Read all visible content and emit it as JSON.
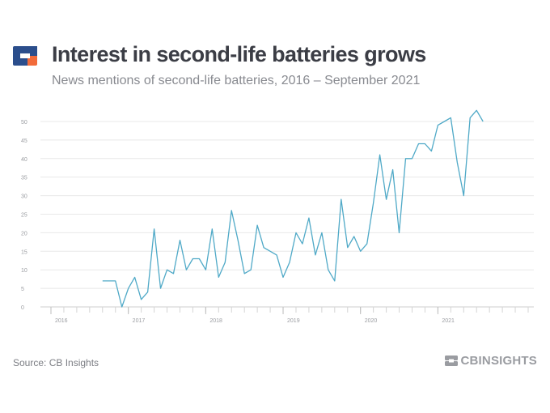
{
  "header": {
    "title": "Interest in second-life batteries grows",
    "subtitle": "News mentions of second-life batteries, 2016 – September 2021"
  },
  "footer": {
    "source": "Source: CB Insights",
    "brand": "CBINSIGHTS"
  },
  "colors": {
    "line": "#4fa9c7",
    "logo_blue": "#2b4e8c",
    "logo_orange": "#f26b3a",
    "grid": "#e8e8e8",
    "axis_text": "#9a9ca1"
  },
  "chart_data": {
    "type": "line",
    "title": "Interest in second-life batteries grows",
    "subtitle": "News mentions of second-life batteries, 2016 – September 2021",
    "xlabel": "",
    "ylabel": "",
    "ylim": [
      0,
      50
    ],
    "yticks": [
      0,
      5,
      10,
      15,
      20,
      25,
      30,
      35,
      40,
      45,
      50
    ],
    "xlim": [
      "2016-01",
      "2022-03"
    ],
    "xticks": [
      "2016",
      "2017",
      "2018",
      "2019",
      "2020",
      "2021"
    ],
    "grid": true,
    "series": [
      {
        "x": [
          "2016-09",
          "2016-10",
          "2016-11",
          "2016-12",
          "2017-01",
          "2017-02",
          "2017-03",
          "2017-04",
          "2017-05",
          "2017-06",
          "2017-07",
          "2017-08",
          "2017-09",
          "2017-10",
          "2017-11",
          "2017-12",
          "2018-01",
          "2018-02",
          "2018-03",
          "2018-04",
          "2018-05",
          "2018-06",
          "2018-07",
          "2018-08",
          "2018-09",
          "2018-10",
          "2018-11",
          "2018-12",
          "2019-01",
          "2019-02",
          "2019-03",
          "2019-04",
          "2019-05",
          "2019-06",
          "2019-07",
          "2019-08",
          "2019-09",
          "2019-10",
          "2019-11",
          "2019-12",
          "2020-01",
          "2020-02",
          "2020-03",
          "2020-04",
          "2020-05",
          "2020-06",
          "2020-07",
          "2020-08",
          "2020-09",
          "2020-10",
          "2020-11",
          "2020-12",
          "2021-01",
          "2021-02",
          "2021-03",
          "2021-04",
          "2021-05",
          "2021-06",
          "2021-07",
          "2021-08",
          "2021-09"
        ],
        "values": [
          7,
          7,
          7,
          0,
          5,
          8,
          2,
          4,
          21,
          5,
          10,
          9,
          18,
          10,
          13,
          13,
          10,
          21,
          8,
          12,
          26,
          18,
          9,
          10,
          22,
          16,
          15,
          14,
          8,
          12,
          20,
          17,
          24,
          14,
          20,
          10,
          7,
          29,
          16,
          19,
          15,
          17,
          28,
          41,
          29,
          37,
          20,
          40,
          40,
          44,
          44,
          42,
          49,
          50,
          51,
          39,
          30,
          51,
          53,
          50,
          null
        ]
      }
    ]
  }
}
